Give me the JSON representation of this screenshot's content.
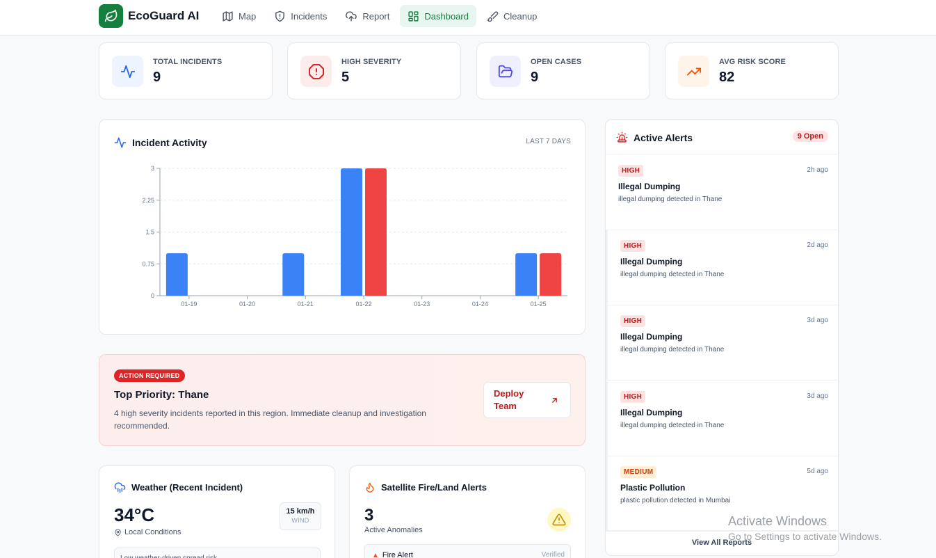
{
  "app": {
    "name": "EcoGuard AI"
  },
  "nav": [
    {
      "label": "Map",
      "icon": "map-icon"
    },
    {
      "label": "Incidents",
      "icon": "shield-icon"
    },
    {
      "label": "Report",
      "icon": "upload-cloud-icon"
    },
    {
      "label": "Dashboard",
      "icon": "dashboard-grid-icon",
      "active": true
    },
    {
      "label": "Cleanup",
      "icon": "brush-icon"
    }
  ],
  "stats": [
    {
      "label": "TOTAL INCIDENTS",
      "value": "9",
      "icon": "activity-pulse-icon",
      "color": "#2563eb",
      "bg": "#eef4ff"
    },
    {
      "label": "HIGH SEVERITY",
      "value": "5",
      "icon": "alert-octagon-icon",
      "color": "#dc2626",
      "bg": "#fdecec"
    },
    {
      "label": "OPEN CASES",
      "value": "9",
      "icon": "folder-open-icon",
      "color": "#4f46e5",
      "bg": "#eef0fe"
    },
    {
      "label": "AVG RISK SCORE",
      "value": "82",
      "icon": "trending-up-icon",
      "color": "#ea580c",
      "bg": "#fff4ea"
    }
  ],
  "activity": {
    "title": "Incident Activity",
    "subtitle": "LAST 7 DAYS"
  },
  "chart_data": {
    "type": "bar",
    "categories": [
      "01-19",
      "01-20",
      "01-21",
      "01-22",
      "01-23",
      "01-24",
      "01-25"
    ],
    "series": [
      {
        "values": [
          1,
          0,
          1,
          3,
          0,
          0,
          1
        ],
        "color": "#3b82f6"
      },
      {
        "values": [
          0,
          0,
          0,
          3,
          0,
          0,
          1
        ],
        "color": "#ef4444"
      }
    ],
    "yticks": [
      "0",
      "0.75",
      "1.5",
      "2.25",
      "3"
    ],
    "ylim": [
      0,
      3
    ],
    "grid": true
  },
  "action": {
    "badge": "ACTION REQUIRED",
    "title": "Top Priority: Thane",
    "description": "4 high severity incidents reported in this region. Immediate cleanup and investigation recommended.",
    "button": "Deploy Team"
  },
  "weather": {
    "title": "Weather (Recent Incident)",
    "temperature": "34°C",
    "location": "Local Conditions",
    "wind_value": "15 km/h",
    "wind_label": "WIND",
    "note": "Low weather-driven spread risk"
  },
  "satellite": {
    "title": "Satellite Fire/Land Alerts",
    "count": "3",
    "count_label": "Active Anomalies",
    "row_name": "Fire Alert",
    "row_status": "Verified"
  },
  "alerts": {
    "title": "Active Alerts",
    "open_count": "9 Open",
    "items": [
      {
        "severity": "HIGH",
        "time": "2h ago",
        "title": "Illegal Dumping",
        "description": "illegal dumping detected in Thane"
      },
      {
        "severity": "HIGH",
        "time": "2d ago",
        "title": "Illegal Dumping",
        "description": "illegal dumping detected in Thane"
      },
      {
        "severity": "HIGH",
        "time": "3d ago",
        "title": "Illegal Dumping",
        "description": "illegal dumping detected in Thane"
      },
      {
        "severity": "HIGH",
        "time": "3d ago",
        "title": "Illegal Dumping",
        "description": "illegal dumping detected in Thane"
      },
      {
        "severity": "MEDIUM",
        "time": "5d ago",
        "title": "Plastic Pollution",
        "description": "plastic pollution detected in Mumbai"
      }
    ],
    "view_all": "View All Reports"
  },
  "watermark": {
    "title": "Activate Windows",
    "subtitle": "Go to Settings to activate Windows."
  }
}
